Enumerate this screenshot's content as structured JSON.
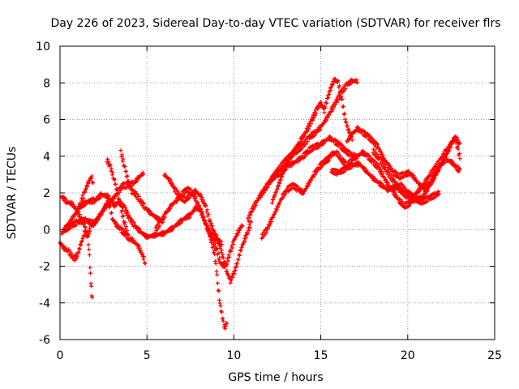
{
  "chart_data": {
    "type": "scatter",
    "title": "Day 226 of 2023, Sidereal Day-to-day VTEC variation (SDTVAR) for receiver flrs",
    "xlabel": "GPS time / hours",
    "ylabel": "SDTVAR / TECUs",
    "xlim": [
      0,
      25
    ],
    "ylim": [
      -6,
      10
    ],
    "xticks": [
      0,
      5,
      10,
      15,
      20,
      25
    ],
    "yticks": [
      -6,
      -4,
      -2,
      0,
      2,
      4,
      6,
      8,
      10
    ],
    "xtick_labels": [
      "0",
      "5",
      "10",
      "15",
      "20",
      "25"
    ],
    "ytick_labels": [
      "-6",
      "-4",
      "-2",
      "0",
      "2",
      "4",
      "6",
      "8",
      "10"
    ],
    "grid": true,
    "legend": "none",
    "marker": "+",
    "color": "#ff0000",
    "series": [
      {
        "name": "track-1",
        "points": [
          [
            0.0,
            -0.7
          ],
          [
            0.2,
            -1.0
          ],
          [
            0.5,
            -1.2
          ],
          [
            0.8,
            -1.6
          ],
          [
            1.0,
            -1.4
          ],
          [
            1.2,
            -0.8
          ],
          [
            1.4,
            -0.2
          ],
          [
            1.6,
            -0.3
          ],
          [
            1.8,
            0.2
          ],
          [
            2.1,
            0.5
          ],
          [
            2.4,
            0.9
          ],
          [
            2.7,
            1.5
          ],
          [
            2.9,
            1.2
          ],
          [
            3.0,
            0.6
          ],
          [
            3.2,
            0.3
          ],
          [
            3.5,
            0.0
          ],
          [
            3.8,
            -0.3
          ],
          [
            4.0,
            -0.5
          ],
          [
            4.2,
            -0.6
          ],
          [
            4.5,
            -0.9
          ],
          [
            4.8,
            -1.5
          ],
          [
            4.9,
            -1.8
          ]
        ]
      },
      {
        "name": "track-2",
        "points": [
          [
            0.1,
            -0.2
          ],
          [
            0.4,
            0.2
          ],
          [
            0.7,
            0.6
          ],
          [
            1.0,
            1.0
          ],
          [
            1.2,
            1.5
          ],
          [
            1.4,
            2.0
          ],
          [
            1.6,
            2.5
          ],
          [
            1.8,
            2.9
          ],
          [
            1.9,
            2.6
          ]
        ]
      },
      {
        "name": "track-3",
        "points": [
          [
            0.1,
            1.8
          ],
          [
            0.4,
            1.5
          ],
          [
            0.7,
            1.4
          ],
          [
            1.0,
            1.0
          ],
          [
            1.2,
            0.6
          ],
          [
            1.4,
            0.3
          ],
          [
            1.6,
            -0.4
          ],
          [
            1.7,
            -1.5
          ],
          [
            1.75,
            -2.5
          ],
          [
            1.8,
            -3.2
          ],
          [
            1.85,
            -3.8
          ]
        ]
      },
      {
        "name": "track-4",
        "points": [
          [
            0.3,
            0.0
          ],
          [
            0.6,
            0.2
          ],
          [
            1.0,
            0.4
          ],
          [
            1.5,
            0.5
          ],
          [
            2.0,
            0.3
          ],
          [
            2.3,
            0.8
          ],
          [
            2.6,
            1.2
          ],
          [
            3.0,
            1.6
          ],
          [
            3.3,
            2.0
          ],
          [
            3.6,
            2.4
          ],
          [
            3.9,
            2.4
          ],
          [
            4.2,
            2.5
          ],
          [
            4.5,
            2.8
          ],
          [
            4.8,
            3.1
          ]
        ]
      },
      {
        "name": "track-5",
        "points": [
          [
            1.0,
            1.1
          ],
          [
            1.5,
            1.5
          ],
          [
            2.0,
            1.6
          ],
          [
            2.4,
            1.9
          ],
          [
            2.8,
            1.8
          ],
          [
            3.1,
            1.3
          ],
          [
            3.4,
            1.5
          ],
          [
            3.7,
            1.2
          ],
          [
            4.0,
            0.6
          ],
          [
            4.3,
            0.2
          ],
          [
            4.6,
            -0.1
          ],
          [
            5.0,
            -0.4
          ],
          [
            5.5,
            -0.3
          ],
          [
            6.0,
            -0.2
          ],
          [
            6.5,
            0.1
          ],
          [
            7.0,
            0.5
          ],
          [
            7.5,
            0.8
          ],
          [
            7.8,
            1.2
          ],
          [
            8.1,
            1.0
          ],
          [
            8.4,
            0.2
          ],
          [
            8.7,
            -0.3
          ],
          [
            9.0,
            -0.5
          ],
          [
            9.3,
            -0.8
          ]
        ]
      },
      {
        "name": "track-6",
        "points": [
          [
            2.7,
            3.8
          ],
          [
            2.9,
            3.4
          ],
          [
            3.1,
            2.8
          ],
          [
            3.3,
            2.0
          ],
          [
            3.5,
            1.2
          ],
          [
            3.7,
            0.4
          ],
          [
            3.9,
            -0.3
          ]
        ]
      },
      {
        "name": "track-7",
        "points": [
          [
            3.5,
            4.2
          ],
          [
            3.7,
            3.5
          ],
          [
            3.9,
            2.7
          ],
          [
            4.1,
            2.1
          ],
          [
            4.3,
            2.0
          ],
          [
            4.6,
            1.6
          ],
          [
            4.9,
            1.2
          ],
          [
            5.2,
            0.9
          ],
          [
            5.6,
            0.6
          ],
          [
            5.9,
            0.5
          ]
        ]
      },
      {
        "name": "track-8",
        "points": [
          [
            6.0,
            3.0
          ],
          [
            6.3,
            2.7
          ],
          [
            6.6,
            2.2
          ],
          [
            6.9,
            1.8
          ],
          [
            7.2,
            1.6
          ],
          [
            7.5,
            1.9
          ],
          [
            7.8,
            2.1
          ],
          [
            8.1,
            1.8
          ],
          [
            8.4,
            1.2
          ],
          [
            8.6,
            0.5
          ],
          [
            8.8,
            0.0
          ],
          [
            9.0,
            -0.4
          ],
          [
            9.2,
            -0.9
          ],
          [
            9.4,
            -1.6
          ],
          [
            9.6,
            -2.3
          ],
          [
            9.8,
            -2.8
          ],
          [
            10.0,
            -2.4
          ],
          [
            10.2,
            -1.8
          ],
          [
            10.4,
            -1.1
          ],
          [
            10.6,
            -0.6
          ],
          [
            10.8,
            -0.1
          ],
          [
            11.0,
            0.4
          ]
        ]
      },
      {
        "name": "track-9",
        "points": [
          [
            5.5,
            0.0
          ],
          [
            5.8,
            0.4
          ],
          [
            6.1,
            0.9
          ],
          [
            6.4,
            1.3
          ],
          [
            6.7,
            1.6
          ],
          [
            7.0,
            1.9
          ],
          [
            7.3,
            2.2
          ],
          [
            7.6,
            2.0
          ],
          [
            7.9,
            1.5
          ],
          [
            8.2,
            0.8
          ],
          [
            8.5,
            0.0
          ],
          [
            8.7,
            -0.6
          ],
          [
            8.9,
            -1.4
          ],
          [
            9.0,
            -2.2
          ],
          [
            9.1,
            -3.2
          ],
          [
            9.2,
            -4.0
          ],
          [
            9.3,
            -4.6
          ],
          [
            9.4,
            -5.1
          ],
          [
            9.5,
            -5.4
          ],
          [
            9.6,
            -5.0
          ]
        ]
      },
      {
        "name": "track-10",
        "points": [
          [
            8.8,
            -0.6
          ],
          [
            9.0,
            -1.0
          ],
          [
            9.2,
            -1.8
          ],
          [
            9.4,
            -2.0
          ],
          [
            9.6,
            -1.8
          ],
          [
            9.8,
            -1.2
          ],
          [
            10.0,
            -0.6
          ],
          [
            10.2,
            -0.2
          ],
          [
            10.5,
            0.3
          ]
        ]
      },
      {
        "name": "track-11",
        "points": [
          [
            10.8,
            0.5
          ],
          [
            11.0,
            1.0
          ],
          [
            11.3,
            1.5
          ],
          [
            11.6,
            2.0
          ],
          [
            11.9,
            2.4
          ],
          [
            12.2,
            2.8
          ],
          [
            12.5,
            3.0
          ],
          [
            12.8,
            3.2
          ],
          [
            13.1,
            3.5
          ],
          [
            13.4,
            3.6
          ],
          [
            13.7,
            3.8
          ],
          [
            14.0,
            4.0
          ],
          [
            14.3,
            4.3
          ],
          [
            14.6,
            4.5
          ],
          [
            14.9,
            4.6
          ],
          [
            15.2,
            4.8
          ],
          [
            15.5,
            5.0
          ],
          [
            15.8,
            4.8
          ],
          [
            16.1,
            4.6
          ],
          [
            16.4,
            4.3
          ],
          [
            16.7,
            4.1
          ],
          [
            17.0,
            4.0
          ]
        ]
      },
      {
        "name": "track-12",
        "points": [
          [
            11.5,
            1.8
          ],
          [
            12.0,
            2.5
          ],
          [
            12.5,
            3.2
          ],
          [
            13.0,
            3.8
          ],
          [
            13.5,
            4.2
          ],
          [
            14.0,
            4.6
          ],
          [
            14.3,
            5.0
          ],
          [
            14.7,
            5.3
          ],
          [
            15.0,
            5.6
          ],
          [
            15.3,
            6.0
          ],
          [
            15.6,
            6.5
          ],
          [
            15.9,
            7.0
          ],
          [
            16.2,
            7.5
          ],
          [
            16.5,
            7.9
          ],
          [
            16.8,
            8.1
          ],
          [
            17.1,
            8.1
          ]
        ]
      },
      {
        "name": "track-13",
        "points": [
          [
            12.2,
            1.5
          ],
          [
            12.6,
            2.5
          ],
          [
            13.0,
            3.5
          ],
          [
            13.4,
            4.2
          ],
          [
            13.8,
            4.8
          ],
          [
            14.2,
            5.4
          ],
          [
            14.5,
            6.0
          ],
          [
            14.8,
            6.6
          ],
          [
            15.0,
            6.9
          ],
          [
            15.2,
            6.5
          ],
          [
            15.4,
            7.2
          ],
          [
            15.6,
            7.8
          ],
          [
            15.8,
            8.2
          ],
          [
            16.0,
            8.0
          ],
          [
            16.2,
            7.2
          ],
          [
            16.4,
            6.0
          ],
          [
            16.6,
            5.4
          ],
          [
            16.8,
            5.0
          ]
        ]
      },
      {
        "name": "track-14",
        "points": [
          [
            11.6,
            -0.4
          ],
          [
            11.9,
            0.0
          ],
          [
            12.2,
            0.6
          ],
          [
            12.5,
            1.2
          ],
          [
            12.8,
            1.8
          ],
          [
            13.1,
            2.2
          ],
          [
            13.4,
            2.4
          ],
          [
            13.7,
            2.2
          ],
          [
            14.0,
            2.0
          ],
          [
            14.3,
            2.5
          ],
          [
            14.6,
            3.0
          ],
          [
            14.9,
            3.4
          ],
          [
            15.2,
            3.7
          ],
          [
            15.5,
            3.9
          ]
        ]
      },
      {
        "name": "track-15",
        "points": [
          [
            15.3,
            3.8
          ],
          [
            15.6,
            4.1
          ],
          [
            15.9,
            4.2
          ],
          [
            16.2,
            3.8
          ],
          [
            16.5,
            3.5
          ],
          [
            16.8,
            3.8
          ],
          [
            17.1,
            4.0
          ],
          [
            17.4,
            4.2
          ],
          [
            17.7,
            4.0
          ],
          [
            18.0,
            3.7
          ],
          [
            18.3,
            3.4
          ],
          [
            18.6,
            2.9
          ],
          [
            18.9,
            2.4
          ],
          [
            19.2,
            2.0
          ],
          [
            19.5,
            1.6
          ],
          [
            19.8,
            1.3
          ],
          [
            20.1,
            1.4
          ],
          [
            20.4,
            1.9
          ],
          [
            20.7,
            2.2
          ],
          [
            21.0,
            2.6
          ],
          [
            21.3,
            3.0
          ],
          [
            21.6,
            3.4
          ],
          [
            21.9,
            3.8
          ],
          [
            22.2,
            4.3
          ],
          [
            22.5,
            4.7
          ],
          [
            22.8,
            5.0
          ],
          [
            23.0,
            4.6
          ]
        ]
      },
      {
        "name": "track-16",
        "points": [
          [
            15.6,
            3.2
          ],
          [
            16.0,
            3.1
          ],
          [
            16.4,
            3.3
          ],
          [
            16.8,
            3.5
          ],
          [
            17.2,
            3.6
          ],
          [
            17.6,
            3.2
          ],
          [
            18.0,
            2.8
          ],
          [
            18.4,
            2.5
          ],
          [
            18.8,
            2.2
          ],
          [
            19.2,
            2.3
          ],
          [
            19.6,
            2.4
          ],
          [
            20.0,
            2.0
          ],
          [
            20.4,
            1.7
          ],
          [
            20.8,
            1.5
          ],
          [
            21.2,
            1.7
          ],
          [
            21.6,
            1.9
          ],
          [
            21.8,
            2.0
          ]
        ]
      },
      {
        "name": "track-17",
        "points": [
          [
            16.5,
            4.8
          ],
          [
            16.8,
            5.2
          ],
          [
            17.1,
            5.5
          ],
          [
            17.4,
            5.3
          ],
          [
            17.7,
            5.1
          ],
          [
            18.0,
            4.8
          ],
          [
            18.3,
            4.5
          ],
          [
            18.6,
            3.9
          ],
          [
            18.9,
            3.5
          ],
          [
            19.2,
            3.1
          ],
          [
            19.5,
            2.9
          ],
          [
            19.8,
            3.0
          ],
          [
            20.1,
            3.1
          ],
          [
            20.4,
            2.8
          ],
          [
            20.7,
            2.4
          ],
          [
            21.0,
            2.2
          ],
          [
            21.3,
            2.5
          ],
          [
            21.6,
            3.0
          ],
          [
            21.9,
            3.5
          ],
          [
            22.2,
            3.8
          ],
          [
            22.5,
            3.7
          ],
          [
            22.8,
            3.4
          ],
          [
            23.0,
            3.2
          ]
        ]
      },
      {
        "name": "track-18",
        "points": [
          [
            18.0,
            4.3
          ],
          [
            18.4,
            3.8
          ],
          [
            18.8,
            3.2
          ],
          [
            19.2,
            2.6
          ],
          [
            19.6,
            2.1
          ],
          [
            20.0,
            1.8
          ],
          [
            20.4,
            1.6
          ],
          [
            20.8,
            1.7
          ],
          [
            21.2,
            2.3
          ],
          [
            21.6,
            3.0
          ],
          [
            22.0,
            3.7
          ],
          [
            22.4,
            4.4
          ],
          [
            22.7,
            5.1
          ],
          [
            22.9,
            4.3
          ],
          [
            23.0,
            3.9
          ]
        ]
      }
    ]
  }
}
